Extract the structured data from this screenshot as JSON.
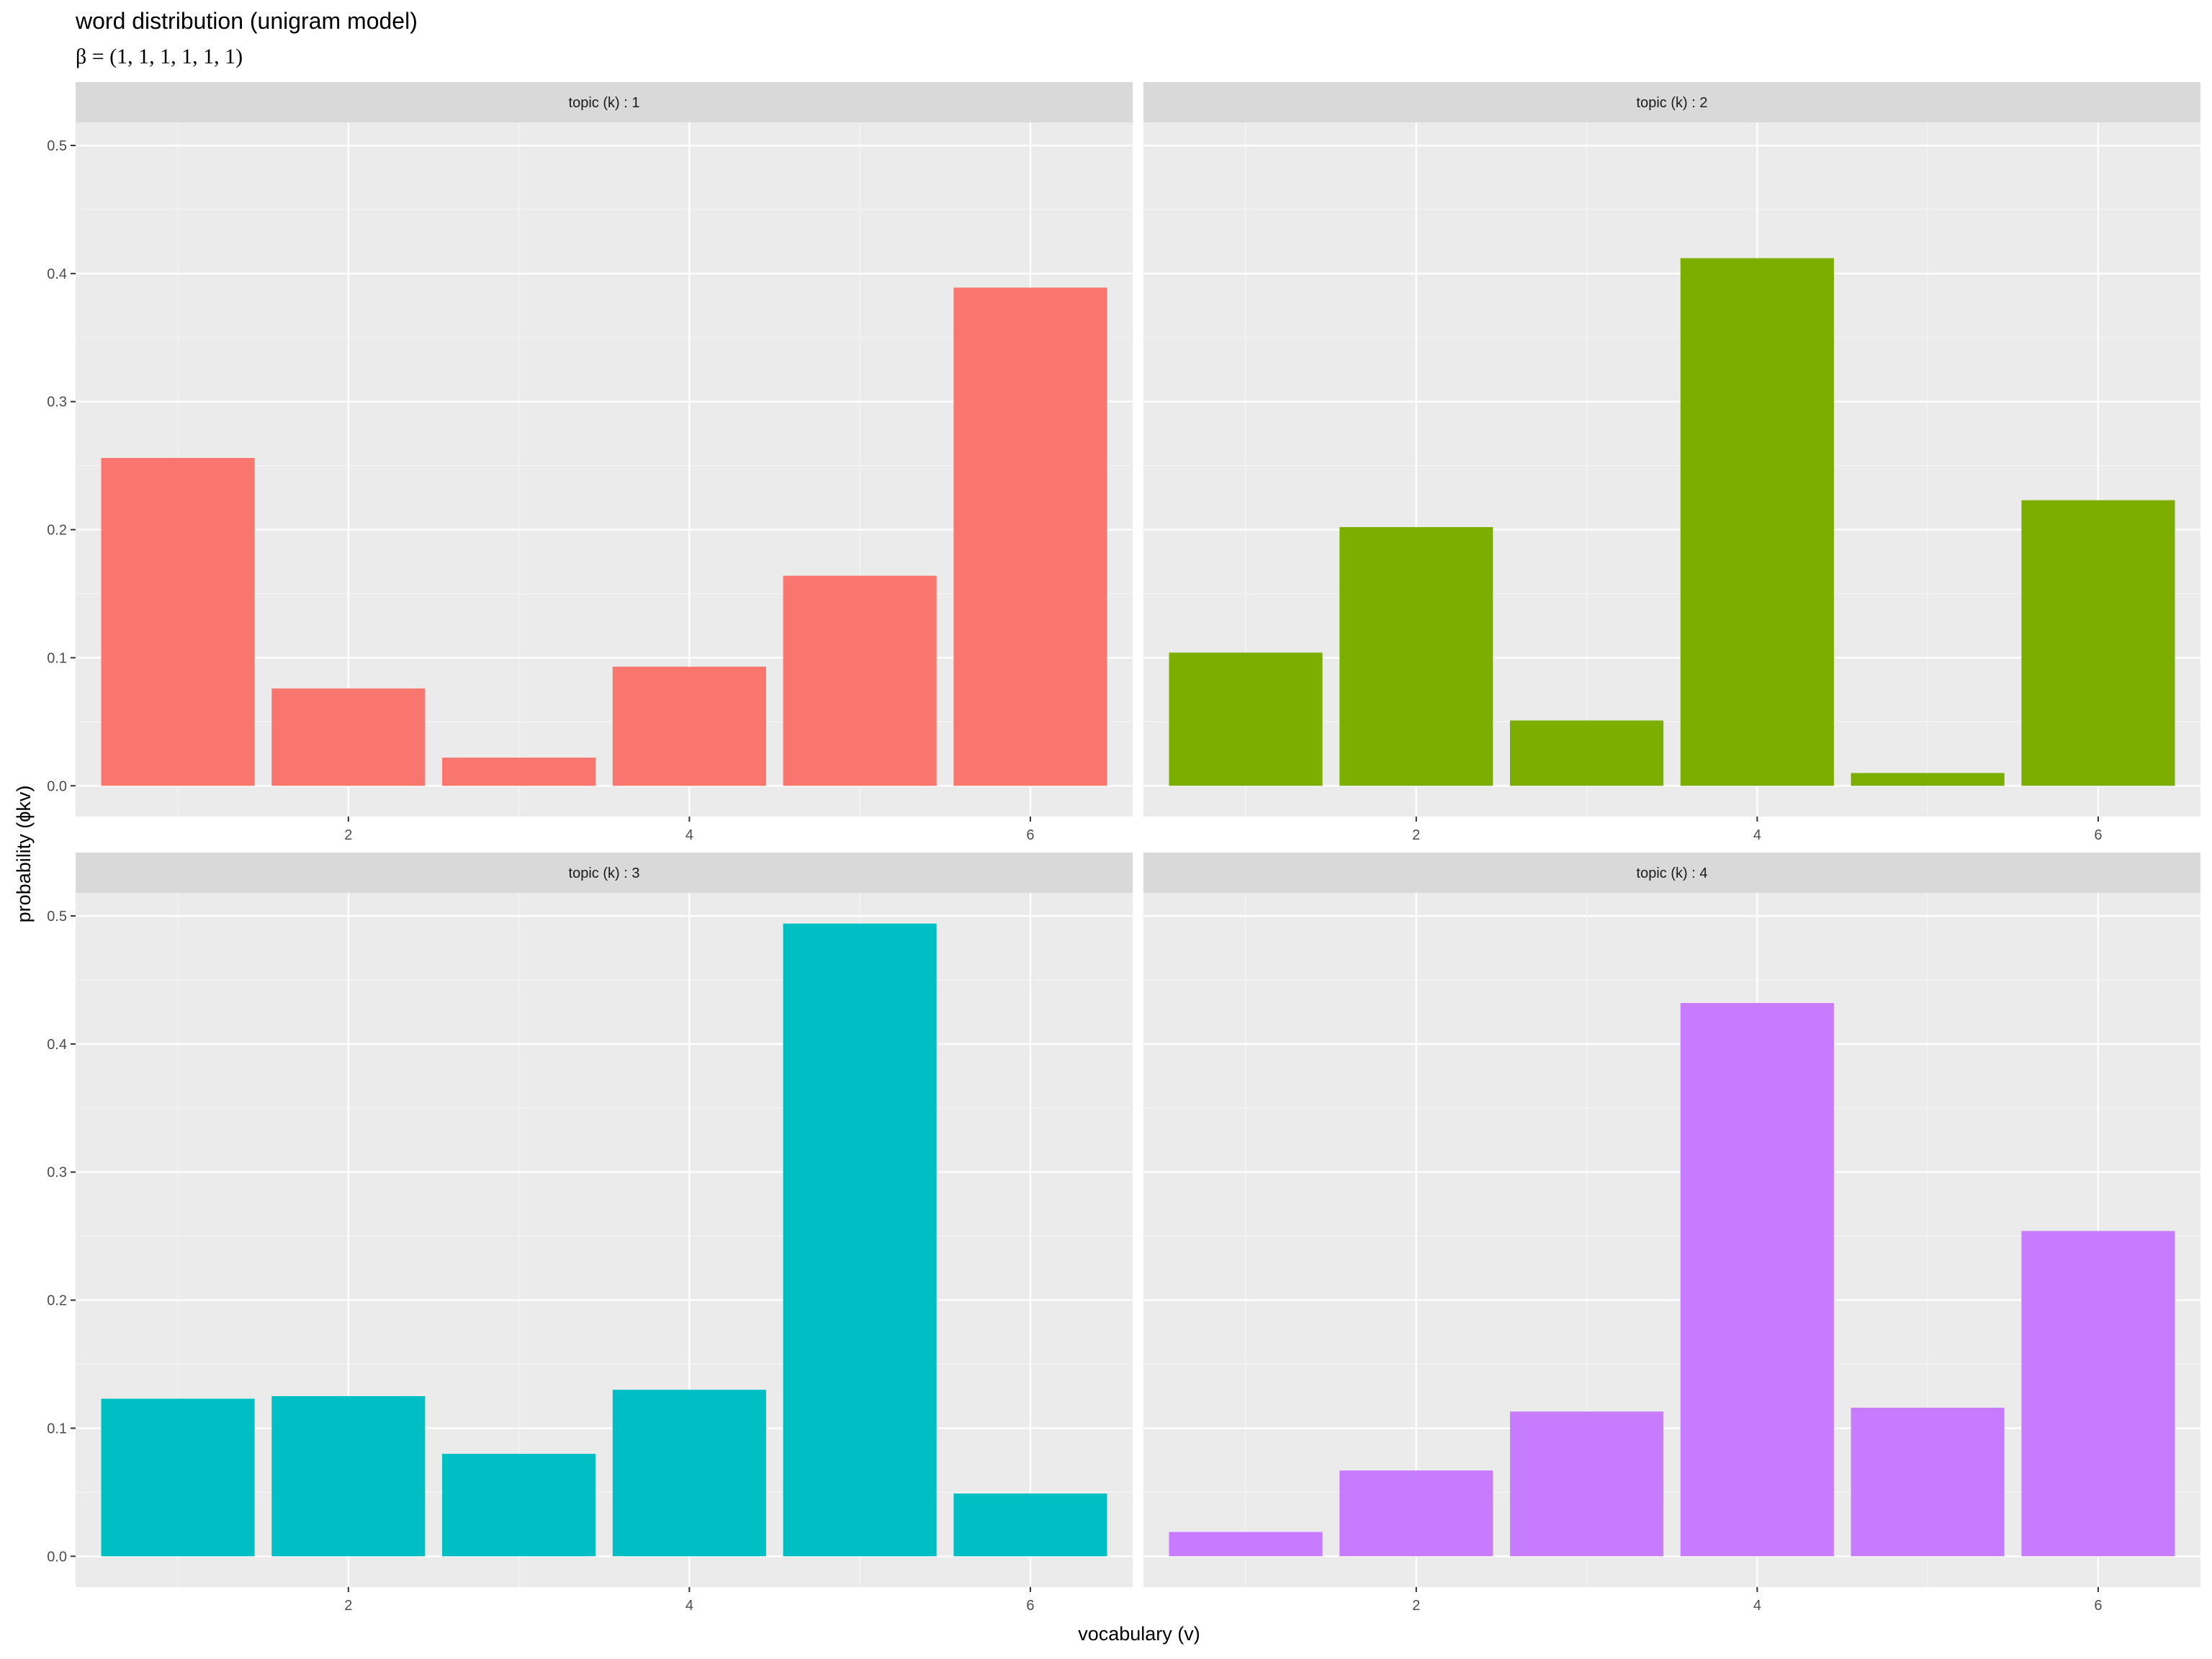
{
  "chart": {
    "title": "word distribution (unigram model)",
    "subtitle": "β = (1, 1, 1, 1, 1, 1)",
    "xlabel": "vocabulary (v)",
    "ylabel": "probability (ϕkv)"
  },
  "chart_data": {
    "type": "bar",
    "facet": "wrap",
    "categories": [
      1,
      2,
      3,
      4,
      5,
      6
    ],
    "x_ticks": [
      2,
      4,
      6
    ],
    "y_ticks": [
      0.0,
      0.1,
      0.2,
      0.3,
      0.4,
      0.5
    ],
    "y_tick_labels": [
      "0.0",
      "0.1",
      "0.2",
      "0.3",
      "0.4",
      "0.5"
    ],
    "xlim": [
      0.4,
      6.6
    ],
    "ylim": [
      -0.024,
      0.518
    ],
    "grid": true,
    "legend": "none",
    "title": "word distribution (unigram model)",
    "subtitle": "β = (1, 1, 1, 1, 1, 1)",
    "xlabel": "vocabulary (v)",
    "ylabel": "probability (ϕkv)",
    "panels": [
      {
        "label": "topic (k) : 1",
        "color": "#F8766D",
        "values": [
          0.256,
          0.076,
          0.022,
          0.093,
          0.164,
          0.389
        ]
      },
      {
        "label": "topic (k) : 2",
        "color": "#7CAE00",
        "values": [
          0.104,
          0.202,
          0.051,
          0.412,
          0.01,
          0.223
        ]
      },
      {
        "label": "topic (k) : 3",
        "color": "#00BFC4",
        "values": [
          0.123,
          0.125,
          0.08,
          0.13,
          0.494,
          0.049
        ]
      },
      {
        "label": "topic (k) : 4",
        "color": "#C77CFF",
        "values": [
          0.019,
          0.067,
          0.113,
          0.432,
          0.116,
          0.254
        ]
      }
    ]
  }
}
